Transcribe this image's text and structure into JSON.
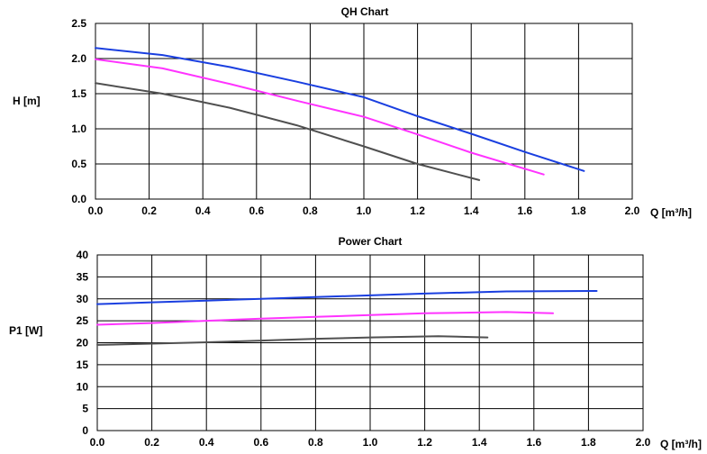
{
  "chart_data": [
    {
      "type": "line",
      "title": "QH Chart",
      "xlabel": "Q [m³/h]",
      "ylabel": "H [m]",
      "xlim": [
        0,
        2.0
      ],
      "ylim": [
        0,
        2.5
      ],
      "x_ticks": [
        "0.0",
        "0.2",
        "0.4",
        "0.6",
        "0.8",
        "1.0",
        "1.2",
        "1.4",
        "1.6",
        "1.8",
        "2.0"
      ],
      "y_ticks": [
        "0.0",
        "0.5",
        "1.0",
        "1.5",
        "2.0",
        "2.5"
      ],
      "grid": true,
      "series": [
        {
          "color": "#1a3fe0",
          "points": [
            [
              0.0,
              2.15
            ],
            [
              0.25,
              2.05
            ],
            [
              0.5,
              1.88
            ],
            [
              0.75,
              1.67
            ],
            [
              1.0,
              1.45
            ],
            [
              1.2,
              1.18
            ],
            [
              1.4,
              0.93
            ],
            [
              1.6,
              0.67
            ],
            [
              1.82,
              0.4
            ]
          ]
        },
        {
          "color": "#ff33ff",
          "points": [
            [
              0.0,
              1.99
            ],
            [
              0.25,
              1.86
            ],
            [
              0.5,
              1.64
            ],
            [
              0.75,
              1.4
            ],
            [
              1.0,
              1.17
            ],
            [
              1.2,
              0.92
            ],
            [
              1.4,
              0.66
            ],
            [
              1.67,
              0.35
            ]
          ]
        },
        {
          "color": "#505050",
          "points": [
            [
              0.0,
              1.65
            ],
            [
              0.25,
              1.5
            ],
            [
              0.5,
              1.3
            ],
            [
              0.75,
              1.05
            ],
            [
              1.0,
              0.75
            ],
            [
              1.2,
              0.5
            ],
            [
              1.43,
              0.27
            ]
          ]
        }
      ]
    },
    {
      "type": "line",
      "title": "Power Chart",
      "xlabel": "Q [m³/h]",
      "ylabel": "P1 [W]",
      "xlim": [
        0,
        2.0
      ],
      "ylim": [
        0,
        40
      ],
      "x_ticks": [
        "0.0",
        "0.2",
        "0.4",
        "0.6",
        "0.8",
        "1.0",
        "1.2",
        "1.4",
        "1.6",
        "1.8",
        "2.0"
      ],
      "y_ticks": [
        "0",
        "5",
        "10",
        "15",
        "20",
        "25",
        "30",
        "35",
        "40"
      ],
      "grid": true,
      "series": [
        {
          "color": "#1a3fe0",
          "points": [
            [
              0.0,
              28.8
            ],
            [
              0.2,
              29.2
            ],
            [
              0.4,
              29.6
            ],
            [
              0.6,
              30.0
            ],
            [
              0.8,
              30.4
            ],
            [
              1.0,
              30.8
            ],
            [
              1.2,
              31.2
            ],
            [
              1.5,
              31.7
            ],
            [
              1.83,
              31.8
            ]
          ]
        },
        {
          "color": "#ff33ff",
          "points": [
            [
              0.0,
              24.1
            ],
            [
              0.2,
              24.5
            ],
            [
              0.4,
              25.0
            ],
            [
              0.6,
              25.5
            ],
            [
              0.8,
              25.9
            ],
            [
              1.0,
              26.3
            ],
            [
              1.2,
              26.7
            ],
            [
              1.5,
              27.0
            ],
            [
              1.67,
              26.7
            ]
          ]
        },
        {
          "color": "#505050",
          "points": [
            [
              0.0,
              19.5
            ],
            [
              0.2,
              19.8
            ],
            [
              0.4,
              20.1
            ],
            [
              0.6,
              20.5
            ],
            [
              0.8,
              20.9
            ],
            [
              1.0,
              21.2
            ],
            [
              1.25,
              21.5
            ],
            [
              1.43,
              21.2
            ]
          ]
        }
      ]
    }
  ]
}
